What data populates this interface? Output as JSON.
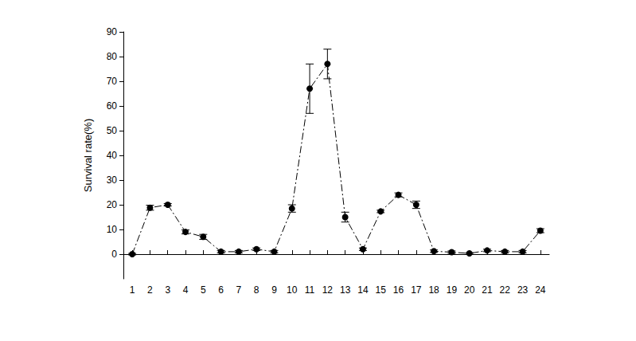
{
  "chart_data": {
    "type": "line",
    "y_label": "Survival rate(%)",
    "categories": [
      1,
      2,
      3,
      4,
      5,
      6,
      7,
      8,
      9,
      10,
      11,
      12,
      13,
      14,
      15,
      16,
      17,
      18,
      19,
      20,
      21,
      22,
      23,
      24
    ],
    "values": [
      0,
      18.8,
      20,
      9,
      7,
      1,
      1,
      2,
      1,
      18.5,
      67,
      77,
      15,
      2,
      17.3,
      24,
      20,
      1.2,
      0.8,
      0.3,
      1.5,
      1,
      1,
      9.5
    ],
    "errors": [
      0.3,
      1,
      0.5,
      0.8,
      1,
      0.5,
      0.5,
      0.5,
      0.5,
      1.5,
      10,
      6,
      2,
      0.5,
      0.5,
      0.8,
      1.5,
      0.5,
      0.5,
      0.3,
      0.5,
      0.5,
      0.5,
      0.8
    ],
    "color": "#000000",
    "marker": "circle",
    "line_style": "dashdot",
    "ylim": [
      -10,
      90
    ],
    "yticks": [
      0,
      10,
      20,
      30,
      40,
      50,
      60,
      70,
      80,
      90
    ],
    "grid": false
  }
}
